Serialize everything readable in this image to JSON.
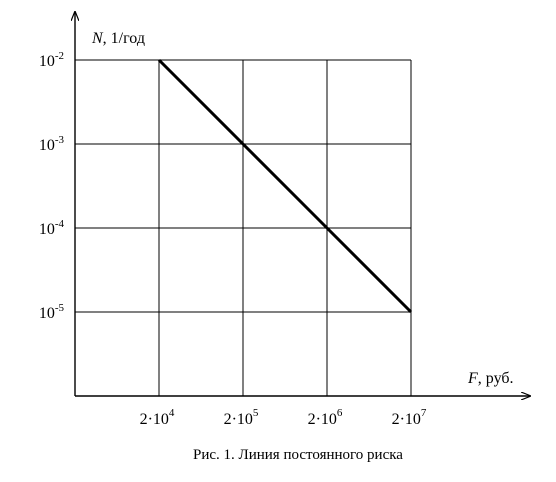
{
  "chart_data": {
    "type": "line",
    "x_scale": "log",
    "y_scale": "log",
    "x": [
      20000,
      200000,
      2000000,
      20000000
    ],
    "x_tick_labels": [
      {
        "base": "2·10",
        "exp": "4"
      },
      {
        "base": "2·10",
        "exp": "5"
      },
      {
        "base": "2·10",
        "exp": "6"
      },
      {
        "base": "2·10",
        "exp": "7"
      }
    ],
    "y_ticks": [
      0.01,
      0.001,
      0.0001,
      1e-05
    ],
    "y_tick_labels": [
      {
        "base": "10",
        "exp": "-2"
      },
      {
        "base": "10",
        "exp": "-3"
      },
      {
        "base": "10",
        "exp": "-4"
      },
      {
        "base": "10",
        "exp": "-5"
      }
    ],
    "series": [
      {
        "x": [
          20000,
          200000,
          2000000,
          20000000
        ],
        "y": [
          0.01,
          0.001,
          0.0001,
          1e-05
        ]
      }
    ],
    "grid": true,
    "ylabel": {
      "var": "N",
      "unit": ", 1/год"
    },
    "xlabel": {
      "var": "F",
      "unit": ",  руб."
    },
    "caption": "Рис. 1. Линия постоянного риска"
  }
}
